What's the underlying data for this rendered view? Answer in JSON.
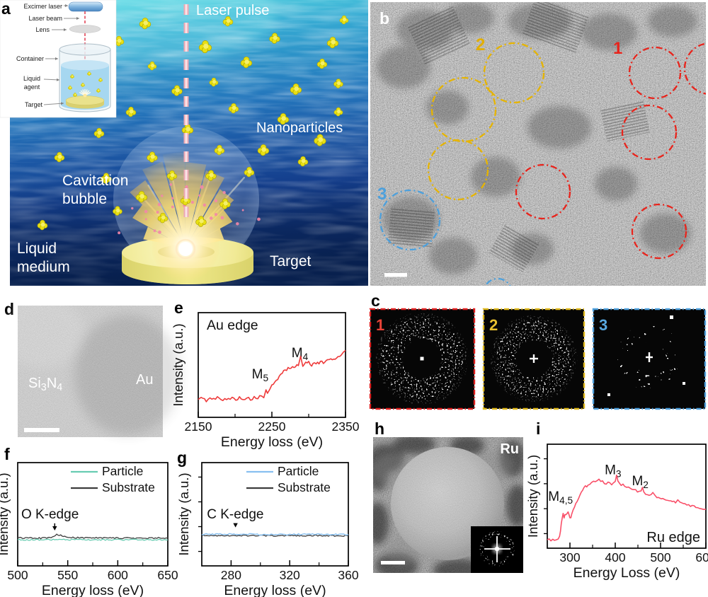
{
  "letters": {
    "a": "a",
    "b": "b",
    "c": "c",
    "d": "d",
    "e": "e",
    "f": "f",
    "g": "g",
    "h": "h",
    "i": "i"
  },
  "panel_a": {
    "inset": {
      "excimer_laser": "Excimer laser",
      "laser_beam": "Laser beam",
      "lens": "Lens",
      "container": "Container",
      "liquid_agent_line1": "Liquid",
      "liquid_agent_line2": "agent",
      "target": "Target"
    },
    "labels": {
      "laser_pulse": "Laser pulse",
      "nanoparticles": "Nanoparticles",
      "cavitation_line1": "Cavitation",
      "cavitation_line2": "bubble",
      "liquid_medium_line1": "Liquid",
      "liquid_medium_line2": "medium",
      "target": "Target"
    },
    "colors": {
      "ocean_top": "#7ce4ec",
      "ocean_mid": "#1e6fb5",
      "ocean_deep": "#0a2458",
      "nanoparticle": "#e8df12",
      "laser_beam": "#eeb0bc"
    }
  },
  "panel_b": {
    "markers": [
      {
        "label": "1",
        "color": "#e8241c"
      },
      {
        "label": "2",
        "color": "#e2ae00"
      },
      {
        "label": "3",
        "color": "#4da0dc"
      }
    ]
  },
  "panel_c": {
    "ffts": [
      {
        "label": "1",
        "color": "#e84338",
        "border": "#e02020"
      },
      {
        "label": "2",
        "color": "#e8c030",
        "border": "#dfb81c"
      },
      {
        "label": "3",
        "color": "#58a8e0",
        "border": "#4d9fdc"
      }
    ]
  },
  "panel_d": {
    "region_left": [
      [
        "Si",
        false
      ],
      [
        "3",
        true
      ],
      [
        "N",
        false
      ],
      [
        "4",
        true
      ]
    ],
    "region_right": "Au"
  },
  "panel_h": {
    "material": "Ru"
  },
  "chart_data": [
    {
      "letter": "e",
      "type": "line",
      "title": "Au edge",
      "xlabel": "Energy loss (eV)",
      "ylabel": "Intensity (a.u.)",
      "xmin": 2150,
      "xmax": 2350,
      "xticks": [
        2150,
        2250,
        2350
      ],
      "xminor": [
        2200,
        2300
      ],
      "yticks": 0,
      "grid": false,
      "legend": null,
      "corner_label": null,
      "annotations": [
        {
          "text": [
            [
              "M",
              false
            ],
            [
              "5",
              true
            ]
          ],
          "x": 2234,
          "yfrac": 0.37,
          "anchor": "middle",
          "arrow": false
        },
        {
          "text": [
            [
              "M",
              false
            ],
            [
              "4",
              true
            ]
          ],
          "x": 2288,
          "yfrac": 0.575,
          "anchor": "middle",
          "arrow": false
        }
      ],
      "series": [
        {
          "name": "Au edge spectrum",
          "color": "#ee3a3a",
          "width": 1.6,
          "noise": 0.013,
          "points": [
            [
              2150,
              0.17
            ],
            [
              2156,
              0.19
            ],
            [
              2161,
              0.16
            ],
            [
              2166,
              0.18
            ],
            [
              2171,
              0.17
            ],
            [
              2176,
              0.19
            ],
            [
              2181,
              0.165
            ],
            [
              2186,
              0.18
            ],
            [
              2191,
              0.17
            ],
            [
              2196,
              0.185
            ],
            [
              2201,
              0.17
            ],
            [
              2206,
              0.19
            ],
            [
              2211,
              0.175
            ],
            [
              2216,
              0.185
            ],
            [
              2221,
              0.17
            ],
            [
              2226,
              0.19
            ],
            [
              2231,
              0.18
            ],
            [
              2236,
              0.21
            ],
            [
              2239,
              0.19
            ],
            [
              2242,
              0.27
            ],
            [
              2244,
              0.22
            ],
            [
              2247,
              0.26
            ],
            [
              2250,
              0.3
            ],
            [
              2254,
              0.33
            ],
            [
              2258,
              0.37
            ],
            [
              2262,
              0.41
            ],
            [
              2266,
              0.44
            ],
            [
              2270,
              0.46
            ],
            [
              2274,
              0.47
            ],
            [
              2278,
              0.475
            ],
            [
              2282,
              0.49
            ],
            [
              2286,
              0.5
            ],
            [
              2289,
              0.57
            ],
            [
              2292,
              0.5
            ],
            [
              2296,
              0.52
            ],
            [
              2300,
              0.53
            ],
            [
              2304,
              0.5
            ],
            [
              2308,
              0.52
            ],
            [
              2312,
              0.515
            ],
            [
              2316,
              0.53
            ],
            [
              2320,
              0.52
            ],
            [
              2324,
              0.535
            ],
            [
              2328,
              0.55
            ],
            [
              2332,
              0.545
            ],
            [
              2336,
              0.565
            ],
            [
              2340,
              0.58
            ],
            [
              2344,
              0.6
            ],
            [
              2347,
              0.615
            ],
            [
              2350,
              0.64
            ]
          ]
        }
      ]
    },
    {
      "letter": "f",
      "type": "line",
      "title": null,
      "xlabel": "Energy loss (eV)",
      "ylabel": "Intensity (a.u.)",
      "xmin": 500,
      "xmax": 650,
      "xticks": [
        500,
        550,
        600,
        650
      ],
      "xminor": [
        525,
        575,
        625
      ],
      "yticks": 0,
      "grid": false,
      "corner_label": null,
      "legend": [
        {
          "label": "Particle",
          "color": "#68ccb2"
        },
        {
          "label": "Substrate",
          "color": "#3d3d3d"
        }
      ],
      "annotations": [
        {
          "text": [
            [
              "O K-edge",
              false
            ]
          ],
          "x": 503.5,
          "yfrac": 0.46,
          "anchor": "start",
          "arrow": true,
          "arrow_x": 537,
          "arrow_tip_frac": 0.315
        }
      ],
      "series": [
        {
          "name": "Substrate",
          "color": "#3d3d3d",
          "width": 1.3,
          "noise": 0.007,
          "points": [
            [
              500,
              0.27
            ],
            [
              520,
              0.268
            ],
            [
              532,
              0.27
            ],
            [
              536,
              0.29
            ],
            [
              539,
              0.302
            ],
            [
              543,
              0.3
            ],
            [
              547,
              0.285
            ],
            [
              552,
              0.276
            ],
            [
              560,
              0.272
            ],
            [
              580,
              0.27
            ],
            [
              600,
              0.27
            ],
            [
              625,
              0.268
            ],
            [
              650,
              0.27
            ]
          ]
        },
        {
          "name": "Particle",
          "color": "#68ccb2",
          "width": 1.3,
          "noise": 0.006,
          "points": [
            [
              500,
              0.252
            ],
            [
              540,
              0.254
            ],
            [
              580,
              0.252
            ],
            [
              620,
              0.253
            ],
            [
              650,
              0.252
            ]
          ]
        }
      ]
    },
    {
      "letter": "g",
      "type": "line",
      "title": null,
      "xlabel": "Energy loss (eV)",
      "ylabel": "Intensity (a.u.)",
      "xmin": 260,
      "xmax": 360,
      "xticks": [
        280,
        320,
        360
      ],
      "xminor": [
        300,
        340
      ],
      "yticks": 4,
      "grid": false,
      "corner_label": null,
      "legend": [
        {
          "label": "Particle",
          "color": "#88c0f0"
        },
        {
          "label": "Substrate",
          "color": "#3d3d3d"
        }
      ],
      "annotations": [
        {
          "text": [
            [
              "C K-edge",
              false
            ]
          ],
          "x": 263.5,
          "yfrac": 0.46,
          "anchor": "start",
          "arrow": true,
          "arrow_x": 283,
          "arrow_tip_frac": 0.345
        }
      ],
      "series": [
        {
          "name": "Substrate",
          "color": "#3d3d3d",
          "width": 1.3,
          "noise": 0.006,
          "points": [
            [
              260,
              0.292
            ],
            [
              285,
              0.294
            ],
            [
              310,
              0.292
            ],
            [
              335,
              0.293
            ],
            [
              360,
              0.292
            ]
          ]
        },
        {
          "name": "Particle",
          "color": "#88c0f0",
          "width": 1.4,
          "noise": 0.007,
          "points": [
            [
              260,
              0.305
            ],
            [
              283,
              0.308
            ],
            [
              300,
              0.304
            ],
            [
              325,
              0.306
            ],
            [
              345,
              0.304
            ],
            [
              360,
              0.305
            ]
          ]
        }
      ]
    },
    {
      "letter": "i",
      "type": "line",
      "title": null,
      "xlabel": "Energy Loss (eV)",
      "ylabel": "Intensity (a.u.)",
      "xmin": 250,
      "xmax": 600,
      "xticks": [
        300,
        400,
        500,
        600
      ],
      "xminor": [
        350,
        450,
        550
      ],
      "yticks": 4,
      "grid": false,
      "legend": null,
      "corner_label": "Ru edge",
      "annotations": [
        {
          "text": [
            [
              "M",
              false
            ],
            [
              "4,5",
              true
            ]
          ],
          "x": 252,
          "yfrac": 0.455,
          "anchor": "start",
          "arrow": false
        },
        {
          "text": [
            [
              "M",
              false
            ],
            [
              "3",
              true
            ]
          ],
          "x": 395,
          "yfrac": 0.71,
          "anchor": "middle",
          "arrow": false
        },
        {
          "text": [
            [
              "M",
              false
            ],
            [
              "2",
              true
            ]
          ],
          "x": 455,
          "yfrac": 0.605,
          "anchor": "middle",
          "arrow": false
        }
      ],
      "series": [
        {
          "name": "Ru edge spectrum",
          "color": "#f94f68",
          "width": 1.6,
          "noise": 0.011,
          "points": [
            [
              250,
              0.08
            ],
            [
              254,
              0.09
            ],
            [
              258,
              0.082
            ],
            [
              262,
              0.09
            ],
            [
              266,
              0.083
            ],
            [
              270,
              0.09
            ],
            [
              274,
              0.088
            ],
            [
              277,
              0.11
            ],
            [
              279,
              0.16
            ],
            [
              281,
              0.24
            ],
            [
              283,
              0.3
            ],
            [
              285,
              0.33
            ],
            [
              287,
              0.3
            ],
            [
              289,
              0.33
            ],
            [
              291,
              0.315
            ],
            [
              293,
              0.33
            ],
            [
              296,
              0.34
            ],
            [
              298,
              0.32
            ],
            [
              300,
              0.285
            ],
            [
              302,
              0.3
            ],
            [
              304,
              0.33
            ],
            [
              307,
              0.37
            ],
            [
              310,
              0.4
            ],
            [
              313,
              0.43
            ],
            [
              316,
              0.46
            ],
            [
              319,
              0.485
            ],
            [
              322,
              0.51
            ],
            [
              325,
              0.535
            ],
            [
              328,
              0.555
            ],
            [
              331,
              0.575
            ],
            [
              334,
              0.59
            ],
            [
              337,
              0.6
            ],
            [
              340,
              0.615
            ],
            [
              344,
              0.625
            ],
            [
              348,
              0.635
            ],
            [
              352,
              0.64
            ],
            [
              356,
              0.65
            ],
            [
              360,
              0.66
            ],
            [
              364,
              0.655
            ],
            [
              368,
              0.645
            ],
            [
              372,
              0.64
            ],
            [
              376,
              0.63
            ],
            [
              380,
              0.625
            ],
            [
              384,
              0.635
            ],
            [
              388,
              0.62
            ],
            [
              392,
              0.61
            ],
            [
              396,
              0.625
            ],
            [
              400,
              0.64
            ],
            [
              403,
              0.71
            ],
            [
              406,
              0.655
            ],
            [
              409,
              0.62
            ],
            [
              413,
              0.605
            ],
            [
              417,
              0.61
            ],
            [
              421,
              0.6
            ],
            [
              425,
              0.59
            ],
            [
              429,
              0.585
            ],
            [
              433,
              0.575
            ],
            [
              437,
              0.57
            ],
            [
              441,
              0.56
            ],
            [
              445,
              0.555
            ],
            [
              449,
              0.55
            ],
            [
              453,
              0.54
            ],
            [
              457,
              0.545
            ],
            [
              460,
              0.58
            ],
            [
              463,
              0.535
            ],
            [
              467,
              0.52
            ],
            [
              471,
              0.515
            ],
            [
              475,
              0.51
            ],
            [
              479,
              0.515
            ],
            [
              483,
              0.53
            ],
            [
              487,
              0.505
            ],
            [
              492,
              0.495
            ],
            [
              498,
              0.487
            ],
            [
              505,
              0.478
            ],
            [
              512,
              0.468
            ],
            [
              519,
              0.458
            ],
            [
              526,
              0.45
            ],
            [
              533,
              0.443
            ],
            [
              538,
              0.455
            ],
            [
              543,
              0.437
            ],
            [
              550,
              0.428
            ],
            [
              558,
              0.418
            ],
            [
              566,
              0.408
            ],
            [
              574,
              0.4
            ],
            [
              582,
              0.392
            ],
            [
              590,
              0.385
            ],
            [
              595,
              0.38
            ],
            [
              600,
              0.375
            ]
          ]
        }
      ]
    }
  ]
}
